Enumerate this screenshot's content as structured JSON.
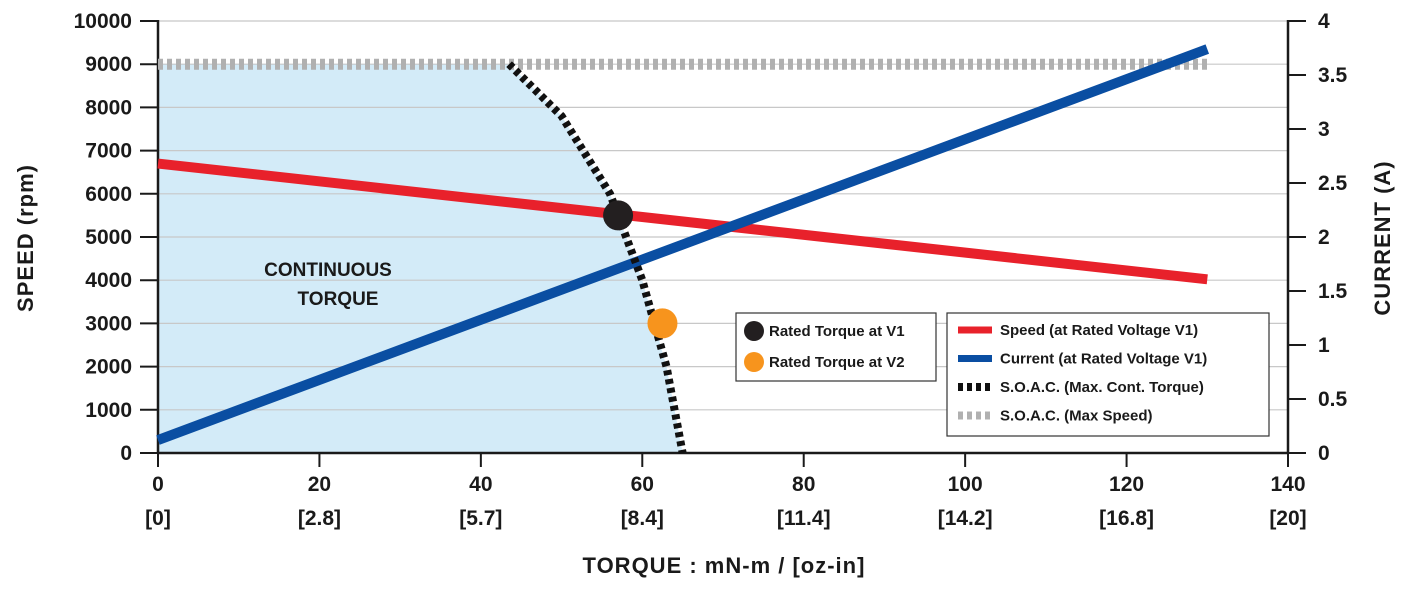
{
  "chart_data": {
    "type": "line",
    "xlabel": "TORQUE : mN-m / [oz-in]",
    "ylabel": "SPEED (rpm)",
    "y2label": "CURRENT (A)",
    "xlim": [
      0,
      140
    ],
    "ylim": [
      0,
      10000
    ],
    "y2lim": [
      0,
      4
    ],
    "x_ticks": [
      0,
      20,
      40,
      60,
      80,
      100,
      120,
      140
    ],
    "x_tick_labels": [
      "0",
      "20",
      "40",
      "60",
      "80",
      "100",
      "120",
      "140"
    ],
    "x_tick_sublabels": [
      "[0]",
      "[2.8]",
      "[5.7]",
      "[8.4]",
      "[11.4]",
      "[14.2]",
      "[16.8]",
      "[20]"
    ],
    "y_ticks": [
      0,
      1000,
      2000,
      3000,
      4000,
      5000,
      6000,
      7000,
      8000,
      9000,
      10000
    ],
    "y2_ticks": [
      0,
      0.5,
      1,
      1.5,
      2,
      2.5,
      3,
      3.5,
      4
    ],
    "grid": true,
    "region_label": [
      "CONTINUOUS",
      "TORQUE"
    ],
    "series": [
      {
        "name": "Speed (at Rated  Voltage V1)",
        "axis": "left",
        "style": "solid",
        "color": "#e8212b",
        "x": [
          0,
          130
        ],
        "y": [
          6700,
          4020
        ]
      },
      {
        "name": "Current (at Rated Voltage V1)",
        "axis": "right",
        "style": "solid",
        "color": "#0a4ea2",
        "x": [
          0,
          130
        ],
        "y": [
          0.12,
          3.74
        ]
      },
      {
        "name": "S.O.A.C. (Max. Cont. Torque)",
        "axis": "left",
        "style": "dashed",
        "color": "#111111",
        "x": [
          43.5,
          50,
          56,
          60,
          63,
          65
        ],
        "y": [
          9000,
          7800,
          6000,
          4000,
          2000,
          0
        ]
      },
      {
        "name": "S.O.A.C. (Max Speed)",
        "axis": "left",
        "style": "dashed",
        "color": "#b0b0b0",
        "x": [
          0,
          130
        ],
        "y": [
          9000,
          9000
        ]
      }
    ],
    "points": [
      {
        "name": "Rated Torque at V1",
        "color": "#231f20",
        "x": 57,
        "y": 5500
      },
      {
        "name": "Rated Torque at V2",
        "color": "#f7941d",
        "x": 62.5,
        "y": 3000
      }
    ],
    "shaded_region": {
      "color": "#d3ebf8",
      "x": [
        0,
        0,
        43.5,
        50,
        56,
        60,
        63,
        65
      ],
      "y": [
        0,
        9000,
        9000,
        7800,
        6000,
        4000,
        2000,
        0
      ]
    }
  }
}
